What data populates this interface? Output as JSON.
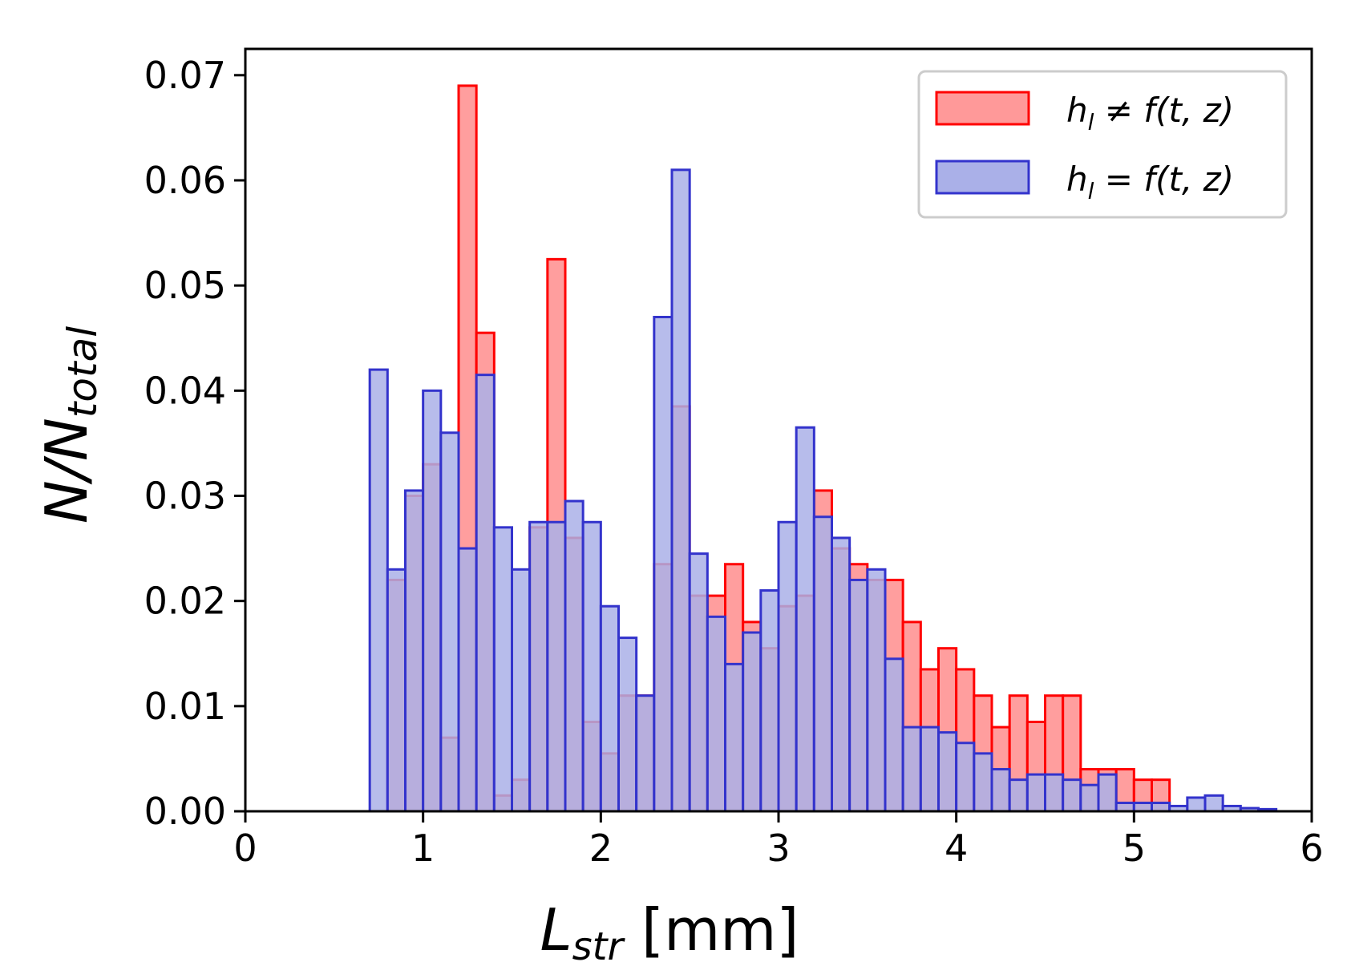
{
  "chart_data": {
    "type": "bar",
    "title": "",
    "xlabel": {
      "main": "L",
      "sub": "str",
      "unit": " [mm]"
    },
    "ylabel": {
      "main": "N/N",
      "sub": "total"
    },
    "xlim": [
      0,
      6
    ],
    "ylim": [
      0,
      0.0725
    ],
    "xticks": [
      "0",
      "1",
      "2",
      "3",
      "4",
      "5",
      "6"
    ],
    "yticks": [
      "0.00",
      "0.01",
      "0.02",
      "0.03",
      "0.04",
      "0.05",
      "0.06",
      "0.07"
    ],
    "grid": false,
    "legend_position": "top-right",
    "bin_width": 0.1,
    "bin_starts": [
      0.7,
      0.8,
      0.9,
      1.0,
      1.1,
      1.2,
      1.3,
      1.4,
      1.5,
      1.6,
      1.7,
      1.8,
      1.9,
      2.0,
      2.1,
      2.2,
      2.3,
      2.4,
      2.5,
      2.6,
      2.7,
      2.8,
      2.9,
      3.0,
      3.1,
      3.2,
      3.3,
      3.4,
      3.5,
      3.6,
      3.7,
      3.8,
      3.9,
      4.0,
      4.1,
      4.2,
      4.3,
      4.4,
      4.5,
      4.6,
      4.7,
      4.8,
      4.9,
      5.0,
      5.1,
      5.2,
      5.3,
      5.4,
      5.5,
      5.6,
      5.7
    ],
    "series": [
      {
        "name": "h_l ≠ f(t, z)",
        "legend_label": {
          "h": "h",
          "sub": "l",
          "rest": " ≠ f(t, z)"
        },
        "fill": "#ff9999",
        "stroke": "#ff0000",
        "values": [
          0.0,
          0.022,
          0.03,
          0.033,
          0.007,
          0.069,
          0.0455,
          0.0015,
          0.003,
          0.027,
          0.0525,
          0.026,
          0.0085,
          0.0055,
          0.011,
          0.011,
          0.0235,
          0.0385,
          0.0205,
          0.0205,
          0.0235,
          0.018,
          0.0155,
          0.0195,
          0.0205,
          0.0305,
          0.025,
          0.0235,
          0.022,
          0.022,
          0.018,
          0.0135,
          0.0155,
          0.0135,
          0.011,
          0.008,
          0.011,
          0.0085,
          0.011,
          0.011,
          0.004,
          0.004,
          0.004,
          0.003,
          0.003,
          0.0,
          0.0,
          0.0,
          0.0,
          0.0,
          0.0
        ]
      },
      {
        "name": "h_l = f(t, z)",
        "legend_label": {
          "h": "h",
          "sub": "l",
          "rest": " = f(t, z)"
        },
        "fill": "#aab0e8",
        "stroke": "#3333cc",
        "values": [
          0.042,
          0.023,
          0.0305,
          0.04,
          0.036,
          0.025,
          0.0415,
          0.027,
          0.023,
          0.0275,
          0.0275,
          0.0295,
          0.0275,
          0.0195,
          0.0165,
          0.011,
          0.047,
          0.061,
          0.0245,
          0.0185,
          0.014,
          0.017,
          0.021,
          0.0275,
          0.0365,
          0.028,
          0.026,
          0.022,
          0.023,
          0.0145,
          0.008,
          0.008,
          0.0075,
          0.0065,
          0.0055,
          0.004,
          0.003,
          0.0035,
          0.0035,
          0.003,
          0.0025,
          0.0035,
          0.0008,
          0.0008,
          0.0008,
          0.0005,
          0.0013,
          0.0015,
          0.0005,
          0.0003,
          0.0002
        ]
      }
    ]
  }
}
